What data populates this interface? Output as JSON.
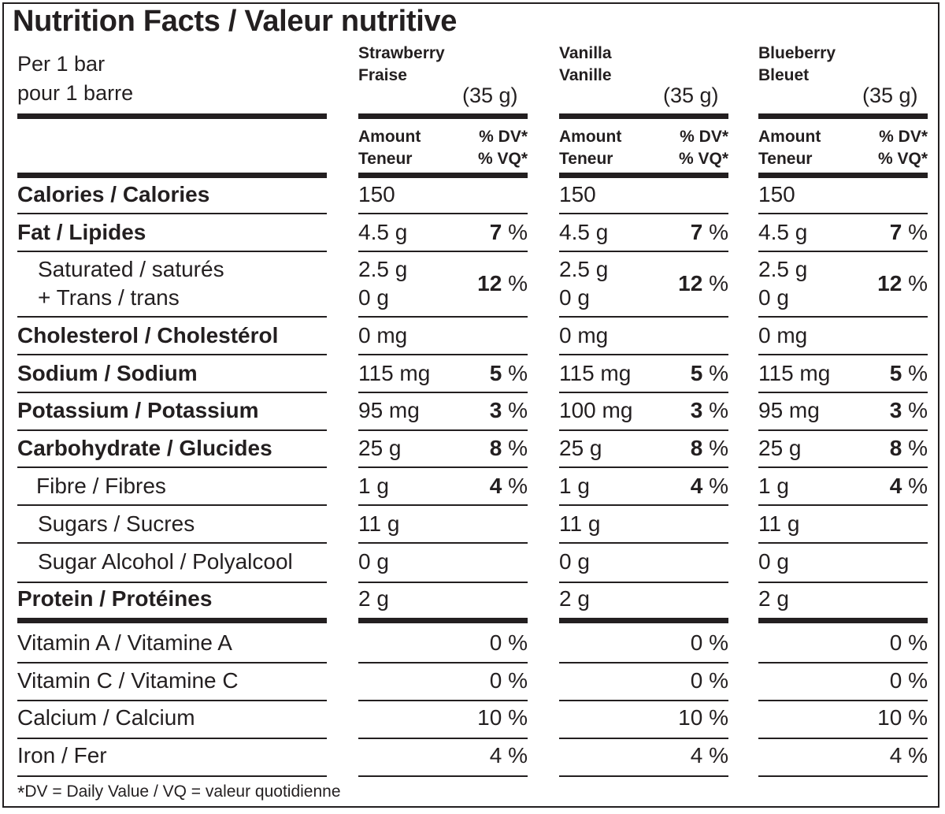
{
  "title": "Nutrition Facts / Valeur nutritive",
  "serving": {
    "line1": "Per 1 bar",
    "line2": "pour 1 barre"
  },
  "flavors": [
    {
      "name_en": "Strawberry",
      "name_fr": "Fraise",
      "weight": "(35 g)"
    },
    {
      "name_en": "Vanilla",
      "name_fr": "Vanille",
      "weight": "(35 g)"
    },
    {
      "name_en": "Blueberry",
      "name_fr": "Bleuet",
      "weight": "(35 g)"
    }
  ],
  "column_headers": {
    "amount": "Amount",
    "teneur": "Teneur",
    "dv": "% DV*",
    "vq": "% VQ*"
  },
  "nutrients": {
    "calories": {
      "label": "Calories / Calories",
      "values": [
        "150",
        "150",
        "150"
      ]
    },
    "fat": {
      "label": "Fat / Lipides",
      "values": [
        "4.5 g",
        "4.5 g",
        "4.5 g"
      ],
      "dv": [
        "7",
        "7",
        "7"
      ]
    },
    "saturated": {
      "label1": "Saturated / saturés",
      "label2": "+ Trans / trans",
      "sat": [
        "2.5 g",
        "2.5 g",
        "2.5 g"
      ],
      "trans": [
        "0 g",
        "0 g",
        "0 g"
      ],
      "dv": [
        "12",
        "12",
        "12"
      ]
    },
    "cholesterol": {
      "label": "Cholesterol / Cholestérol",
      "values": [
        "0 mg",
        "0 mg",
        "0 mg"
      ]
    },
    "sodium": {
      "label": "Sodium / Sodium",
      "values": [
        "115 mg",
        "115 mg",
        "115 mg"
      ],
      "dv": [
        "5",
        "5",
        "5"
      ]
    },
    "potassium": {
      "label": "Potassium / Potassium",
      "values": [
        "95 mg",
        "100 mg",
        "95 mg"
      ],
      "dv": [
        "3",
        "3",
        "3"
      ]
    },
    "carbohydrate": {
      "label": "Carbohydrate / Glucides",
      "values": [
        "25 g",
        "25 g",
        "25 g"
      ],
      "dv": [
        "8",
        "8",
        "8"
      ]
    },
    "fibre": {
      "label": "Fibre / Fibres",
      "values": [
        "1 g",
        "1 g",
        "1 g"
      ],
      "dv": [
        "4",
        "4",
        "4"
      ]
    },
    "sugars": {
      "label": "Sugars / Sucres",
      "values": [
        "11 g",
        "11 g",
        "11 g"
      ]
    },
    "sugar_alcohol": {
      "label": "Sugar Alcohol / Polyalcool",
      "values": [
        "0 g",
        "0 g",
        "0 g"
      ]
    },
    "protein": {
      "label": "Protein / Protéines",
      "values": [
        "2 g",
        "2 g",
        "2 g"
      ]
    }
  },
  "vitamins": {
    "vitamin_a": {
      "label": "Vitamin A / Vitamine A",
      "values": [
        "0 %",
        "0 %",
        "0 %"
      ]
    },
    "vitamin_c": {
      "label": "Vitamin C / Vitamine C",
      "values": [
        "0 %",
        "0 %",
        "0 %"
      ]
    },
    "calcium": {
      "label": "Calcium / Calcium",
      "values": [
        "10 %",
        "10 %",
        "10 %"
      ]
    },
    "iron": {
      "label": "Iron / Fer",
      "values": [
        "4 %",
        "4 %",
        "4 %"
      ]
    }
  },
  "percent_sign": "%",
  "footnote": {
    "star": "*",
    "text": "DV = Daily Value / VQ = valeur quotidienne"
  }
}
